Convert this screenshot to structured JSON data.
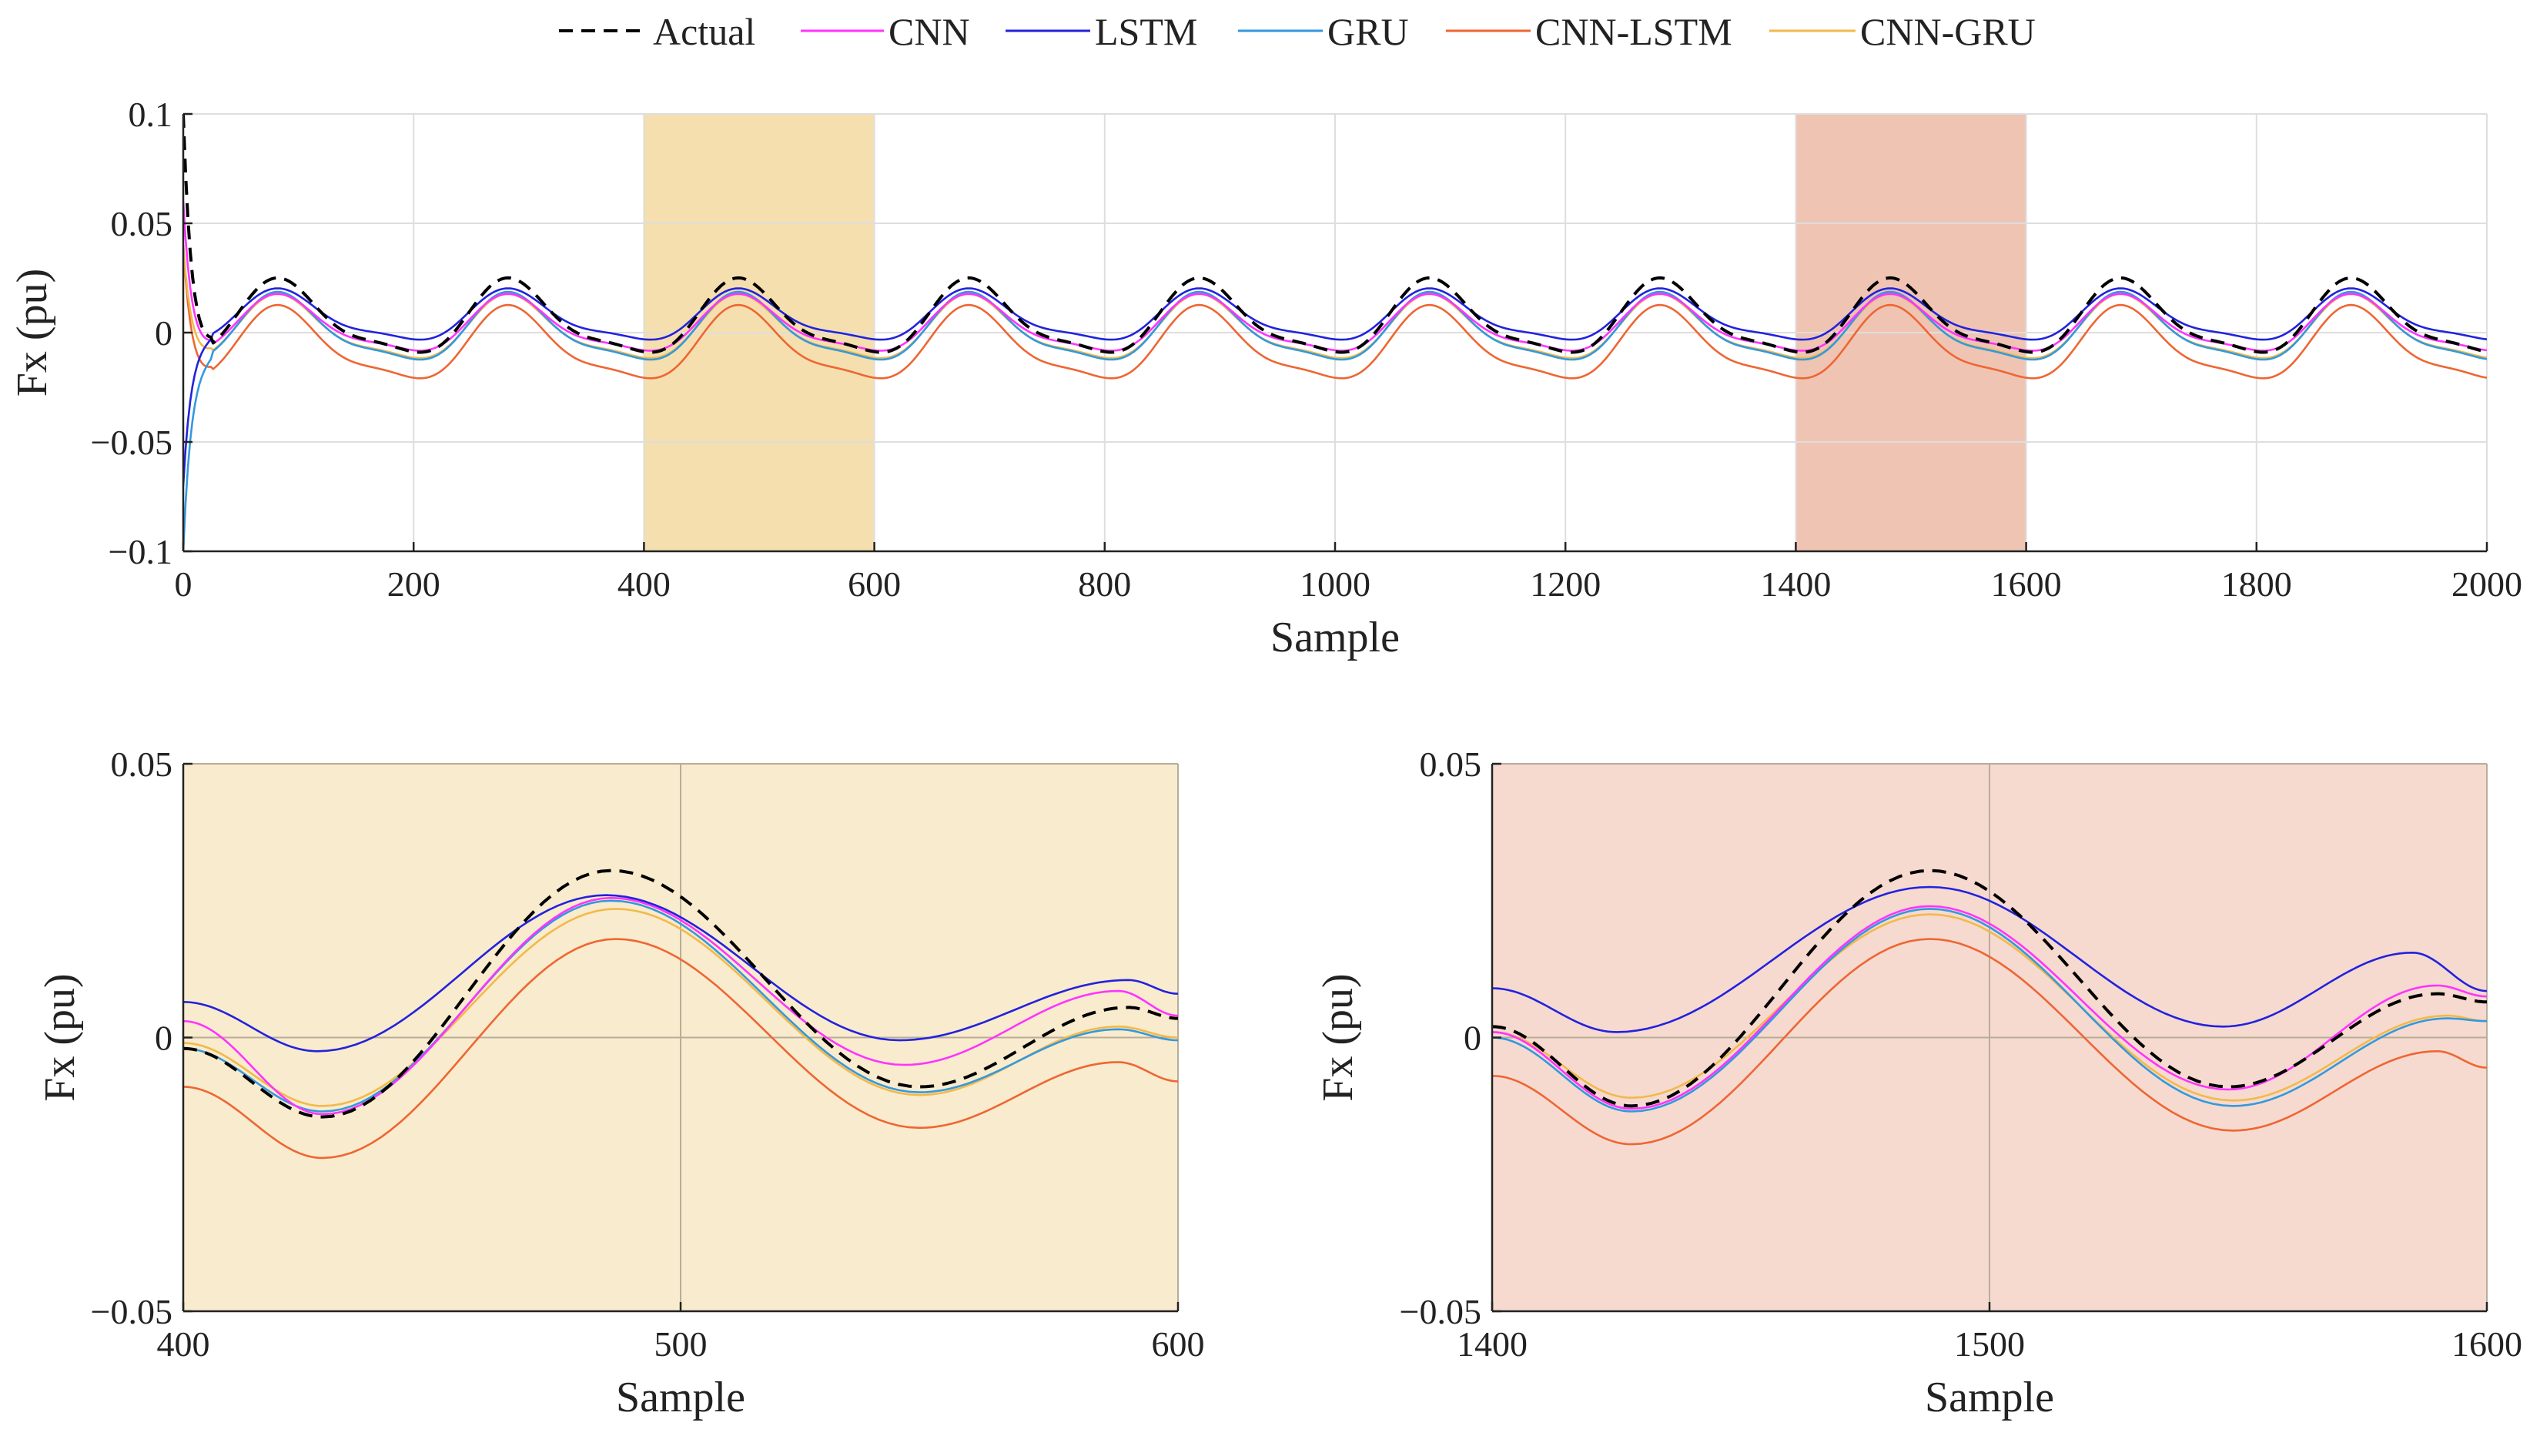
{
  "legend": [
    {
      "name": "Actual",
      "color": "#000000",
      "dash": true
    },
    {
      "name": "CNN",
      "color": "#ff33ff",
      "dash": false
    },
    {
      "name": "LSTM",
      "color": "#2222dd",
      "dash": false
    },
    {
      "name": "GRU",
      "color": "#3399dd",
      "dash": false
    },
    {
      "name": "CNN-LSTM",
      "color": "#ee6633",
      "dash": false
    },
    {
      "name": "CNN-GRU",
      "color": "#f2b94a",
      "dash": false
    }
  ],
  "chart_data": [
    {
      "type": "line",
      "xlabel": "Sample",
      "ylabel": "Fx (pu)",
      "xlim": [
        0,
        2000
      ],
      "ylim": [
        -0.1,
        0.1
      ],
      "xticks": [
        "0",
        "200",
        "400",
        "600",
        "800",
        "1000",
        "1200",
        "1400",
        "1600",
        "1800",
        "2000"
      ],
      "yticks": [
        "−0.1",
        "−0.05",
        "0",
        "0.05",
        "0.1"
      ],
      "grid": true,
      "highlight_regions": [
        {
          "x": [
            400,
            600
          ],
          "color": "#f5dfae"
        },
        {
          "x": [
            1400,
            1600
          ],
          "color": "#efc4b3"
        }
      ],
      "signal": {
        "period": 200,
        "peak_sample": 87,
        "actual_amplitude": 0.02,
        "actual_offset": 0.01
      },
      "series": [
        {
          "name": "Actual",
          "offset": 0.0101,
          "amplitude": 0.0203,
          "startup_spike": 0.1
        },
        {
          "name": "CNN",
          "offset": 0.0075,
          "amplitude": 0.0155,
          "startup_spike": 0.06
        },
        {
          "name": "LSTM",
          "offset": 0.0115,
          "amplitude": 0.014,
          "startup_spike": -0.07
        },
        {
          "name": "GRU",
          "offset": 0.0055,
          "amplitude": 0.0185,
          "startup_spike": -0.1
        },
        {
          "name": "CNN-LSTM",
          "offset": -0.002,
          "amplitude": 0.02,
          "startup_spike": 0.04
        },
        {
          "name": "CNN-GRU",
          "offset": 0.0055,
          "amplitude": 0.0175,
          "startup_spike": 0.04
        }
      ]
    },
    {
      "type": "line",
      "xlabel": "Sample",
      "ylabel": "Fx (pu)",
      "xlim": [
        400,
        600
      ],
      "ylim": [
        -0.05,
        0.05
      ],
      "xticks": [
        "400",
        "500",
        "600"
      ],
      "yticks": [
        "−0.05",
        "0",
        "0.05"
      ],
      "background": "#f9ebcd",
      "series": [
        {
          "name": "Actual",
          "x": [
            400,
            428,
            486,
            548,
            590,
            600
          ],
          "y": [
            -0.002,
            -0.0145,
            0.0305,
            -0.009,
            0.0055,
            0.0035
          ]
        },
        {
          "name": "CNN",
          "x": [
            400,
            428,
            486,
            545,
            588,
            600
          ],
          "y": [
            0.003,
            -0.014,
            0.0255,
            -0.005,
            0.0085,
            0.004
          ]
        },
        {
          "name": "LSTM",
          "x": [
            400,
            427,
            485,
            544,
            590,
            600
          ],
          "y": [
            0.0065,
            -0.0025,
            0.026,
            -0.0005,
            0.0105,
            0.008
          ]
        },
        {
          "name": "GRU",
          "x": [
            400,
            428,
            486,
            548,
            588,
            600
          ],
          "y": [
            -0.002,
            -0.0135,
            0.025,
            -0.01,
            0.0015,
            -0.0005
          ]
        },
        {
          "name": "CNN-LSTM",
          "x": [
            400,
            428,
            487,
            548,
            588,
            600
          ],
          "y": [
            -0.009,
            -0.022,
            0.018,
            -0.0165,
            -0.0045,
            -0.008
          ]
        },
        {
          "name": "CNN-GRU",
          "x": [
            400,
            428,
            487,
            548,
            588,
            600
          ],
          "y": [
            -0.001,
            -0.0125,
            0.0235,
            -0.0105,
            0.002,
            0.0
          ]
        }
      ]
    },
    {
      "type": "line",
      "xlabel": "Sample",
      "ylabel": "Fx (pu)",
      "xlim": [
        1400,
        1600
      ],
      "ylim": [
        -0.05,
        0.05
      ],
      "xticks": [
        "1400",
        "1500",
        "1600"
      ],
      "yticks": [
        "−0.05",
        "0",
        "0.05"
      ],
      "background": "#f6dad0",
      "series": [
        {
          "name": "Actual",
          "x": [
            1400,
            1428,
            1488,
            1548,
            1590,
            1600
          ],
          "y": [
            0.002,
            -0.0125,
            0.0305,
            -0.009,
            0.008,
            0.0065
          ]
        },
        {
          "name": "CNN",
          "x": [
            1400,
            1428,
            1488,
            1548,
            1590,
            1600
          ],
          "y": [
            0.001,
            -0.013,
            0.024,
            -0.0095,
            0.0095,
            0.0075
          ]
        },
        {
          "name": "LSTM",
          "x": [
            1400,
            1425,
            1488,
            1547,
            1585,
            1600
          ],
          "y": [
            0.009,
            0.001,
            0.0275,
            0.002,
            0.0155,
            0.0085
          ]
        },
        {
          "name": "GRU",
          "x": [
            1400,
            1428,
            1488,
            1549,
            1592,
            1600
          ],
          "y": [
            0.0,
            -0.0135,
            0.0235,
            -0.0125,
            0.0035,
            0.003
          ]
        },
        {
          "name": "CNN-LSTM",
          "x": [
            1400,
            1428,
            1488,
            1549,
            1590,
            1600
          ],
          "y": [
            -0.007,
            -0.0195,
            0.018,
            -0.017,
            -0.0025,
            -0.0055
          ]
        },
        {
          "name": "CNN-GRU",
          "x": [
            1400,
            1428,
            1488,
            1549,
            1592,
            1600
          ],
          "y": [
            0.001,
            -0.011,
            0.0225,
            -0.0115,
            0.004,
            0.003
          ]
        }
      ]
    }
  ]
}
